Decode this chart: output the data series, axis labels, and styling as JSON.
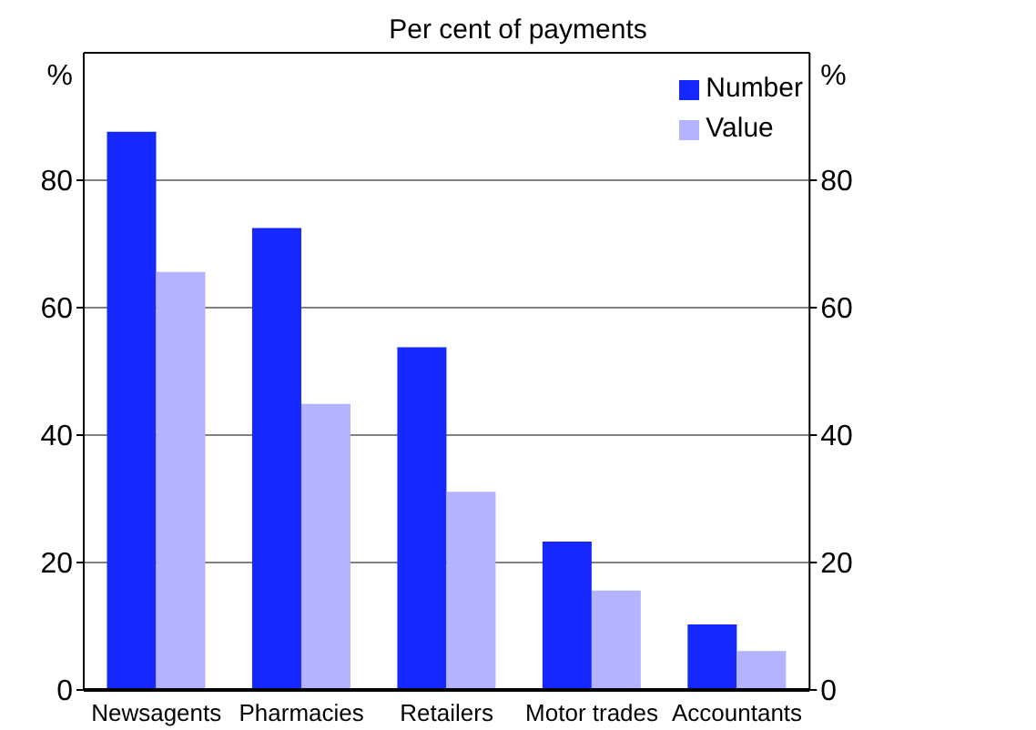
{
  "chart_data": {
    "type": "bar",
    "title": "Per cent of payments",
    "ylabel": "%",
    "y2label": "%",
    "categories": [
      "Newsagents",
      "Pharmacies",
      "Retailers",
      "Motor trades",
      "Accountants"
    ],
    "series": [
      {
        "name": "Number",
        "color": "#1428ff",
        "values": [
          87.6,
          72.5,
          53.8,
          23.3,
          10.3
        ]
      },
      {
        "name": "Value",
        "color": "#b3b3ff",
        "values": [
          65.6,
          44.9,
          31.1,
          15.6,
          6.1
        ]
      }
    ],
    "ylim": [
      0,
      100
    ],
    "yticks": [
      0,
      20,
      40,
      60,
      80
    ],
    "y2lim": [
      0,
      100
    ],
    "y2ticks": [
      0,
      20,
      40,
      60,
      80
    ],
    "grid": "y",
    "legend": "top right"
  }
}
